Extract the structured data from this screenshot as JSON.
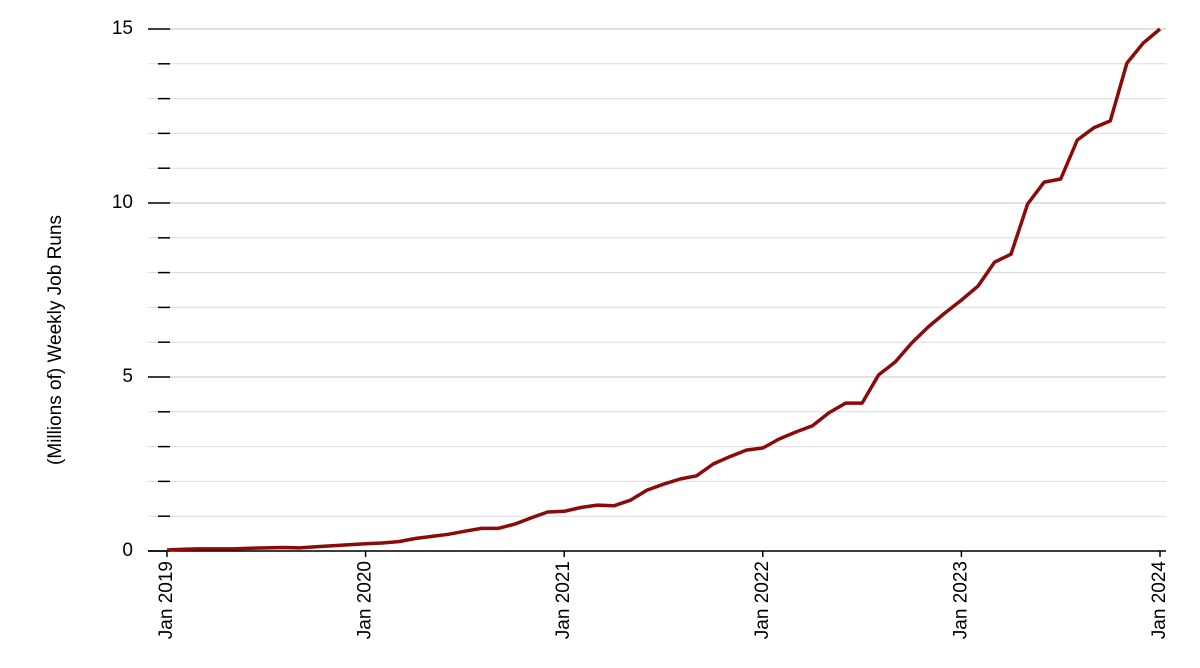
{
  "chart_data": {
    "type": "line",
    "y_label": "(Millions of) Weekly Job Runs",
    "x": [
      "2019-01",
      "2019-02",
      "2019-03",
      "2019-04",
      "2019-05",
      "2019-06",
      "2019-07",
      "2019-08",
      "2019-09",
      "2019-10",
      "2019-11",
      "2019-12",
      "2020-01",
      "2020-02",
      "2020-03",
      "2020-04",
      "2020-05",
      "2020-06",
      "2020-07",
      "2020-08",
      "2020-09",
      "2020-10",
      "2020-11",
      "2020-12",
      "2021-01",
      "2021-02",
      "2021-03",
      "2021-04",
      "2021-05",
      "2021-06",
      "2021-07",
      "2021-08",
      "2021-09",
      "2021-10",
      "2021-11",
      "2021-12",
      "2022-01",
      "2022-02",
      "2022-03",
      "2022-04",
      "2022-05",
      "2022-06",
      "2022-07",
      "2022-08",
      "2022-09",
      "2022-10",
      "2022-11",
      "2022-12",
      "2023-01",
      "2023-02",
      "2023-03",
      "2023-04",
      "2023-05",
      "2023-06",
      "2023-07",
      "2023-08",
      "2023-09",
      "2023-10",
      "2023-11",
      "2023-12",
      "2024-01"
    ],
    "series": [
      {
        "color": "#8b0a0a",
        "values": [
          0.03,
          0.05,
          0.06,
          0.06,
          0.06,
          0.08,
          0.09,
          0.1,
          0.09,
          0.12,
          0.15,
          0.18,
          0.21,
          0.23,
          0.27,
          0.36,
          0.42,
          0.48,
          0.57,
          0.65,
          0.65,
          0.77,
          0.95,
          1.12,
          1.14,
          1.25,
          1.32,
          1.3,
          1.46,
          1.75,
          1.92,
          2.07,
          2.16,
          2.5,
          2.71,
          2.9,
          2.96,
          3.22,
          3.42,
          3.6,
          3.97,
          4.25,
          4.25,
          5.06,
          5.43,
          5.98,
          6.44,
          6.84,
          7.21,
          7.61,
          8.3,
          8.53,
          9.97,
          10.6,
          10.69,
          11.81,
          12.16,
          12.36,
          14.02,
          14.6,
          15.0
        ]
      }
    ],
    "xlim": [
      "2019-01",
      "2024-01"
    ],
    "xticks": [
      {
        "value": "2019-01",
        "label": "Jan 2019"
      },
      {
        "value": "2020-01",
        "label": "Jan 2020"
      },
      {
        "value": "2021-01",
        "label": "Jan 2021"
      },
      {
        "value": "2022-01",
        "label": "Jan 2022"
      },
      {
        "value": "2023-01",
        "label": "Jan 2023"
      },
      {
        "value": "2024-01",
        "label": "Jan 2024"
      }
    ],
    "ylim": [
      0,
      15
    ],
    "yticks": [
      0,
      5,
      10,
      15
    ],
    "yminor_ticks": [
      1,
      2,
      3,
      4,
      6,
      7,
      8,
      9,
      11,
      12,
      13,
      14
    ],
    "grid": true
  }
}
